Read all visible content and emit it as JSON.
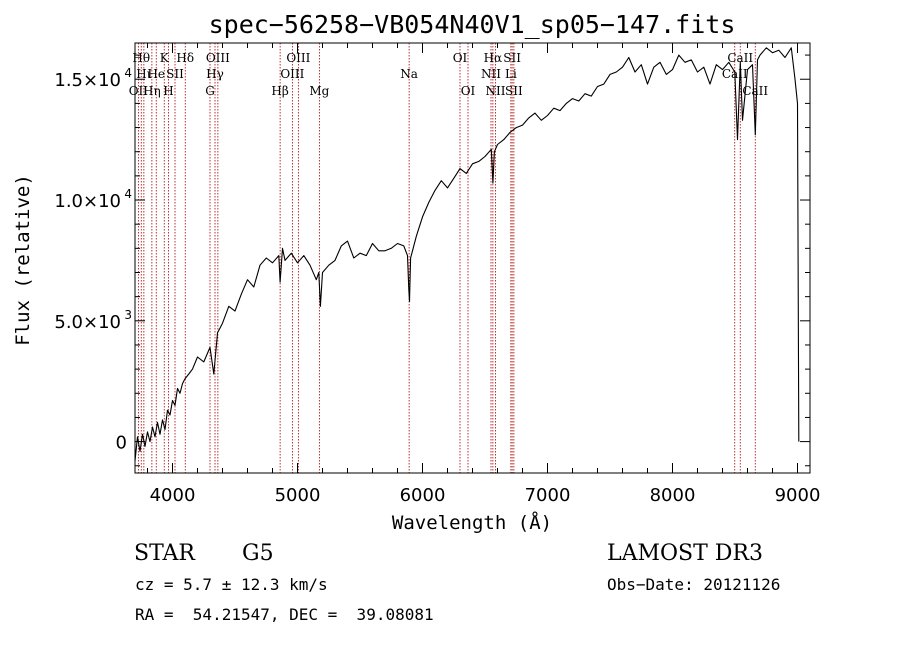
{
  "chart_data": {
    "type": "line",
    "title": "spec−56258−VB054N40V1_sp05−147.fits",
    "xlabel": "Wavelength (Å)",
    "ylabel": "Flux (relative)",
    "xlim": [
      3700,
      9100
    ],
    "ylim": [
      -1300,
      16500
    ],
    "x_ticks": [
      {
        "value": 4000,
        "label": "4000"
      },
      {
        "value": 5000,
        "label": "5000"
      },
      {
        "value": 6000,
        "label": "6000"
      },
      {
        "value": 7000,
        "label": "7000"
      },
      {
        "value": 8000,
        "label": "8000"
      },
      {
        "value": 9000,
        "label": "9000"
      }
    ],
    "y_ticks": [
      {
        "value": 0,
        "label": "0"
      },
      {
        "value": 5000,
        "label": "5.0×10",
        "exp": "3"
      },
      {
        "value": 10000,
        "label": "1.0×10",
        "exp": "4"
      },
      {
        "value": 15000,
        "label": "1.5×10",
        "exp": "4"
      }
    ],
    "series": [
      {
        "name": "flux",
        "x": [
          3700,
          3720,
          3740,
          3760,
          3780,
          3800,
          3820,
          3840,
          3860,
          3880,
          3900,
          3920,
          3940,
          3960,
          3980,
          4000,
          4020,
          4040,
          4060,
          4080,
          4100,
          4130,
          4160,
          4200,
          4250,
          4300,
          4330,
          4360,
          4400,
          4450,
          4500,
          4550,
          4600,
          4650,
          4700,
          4750,
          4800,
          4850,
          4861,
          4880,
          4900,
          4950,
          5000,
          5050,
          5100,
          5150,
          5170,
          5183,
          5200,
          5250,
          5300,
          5350,
          5400,
          5450,
          5500,
          5550,
          5600,
          5650,
          5700,
          5750,
          5800,
          5850,
          5880,
          5890,
          5896,
          5905,
          5920,
          5950,
          6000,
          6050,
          6100,
          6150,
          6200,
          6250,
          6300,
          6350,
          6400,
          6450,
          6500,
          6550,
          6563,
          6575,
          6600,
          6650,
          6700,
          6750,
          6800,
          6850,
          6900,
          6950,
          7000,
          7050,
          7100,
          7150,
          7200,
          7250,
          7300,
          7350,
          7400,
          7450,
          7500,
          7550,
          7600,
          7650,
          7700,
          7750,
          7800,
          7850,
          7900,
          7950,
          8000,
          8050,
          8100,
          8150,
          8200,
          8250,
          8300,
          8350,
          8400,
          8450,
          8498,
          8520,
          8542,
          8560,
          8600,
          8640,
          8662,
          8680,
          8700,
          8750,
          8800,
          8850,
          8900,
          8950,
          8980,
          9000,
          9010
        ],
        "y": [
          -800,
          200,
          -400,
          300,
          -200,
          400,
          0,
          600,
          200,
          800,
          300,
          900,
          500,
          1300,
          1100,
          1700,
          1500,
          2200,
          2000,
          2400,
          2600,
          2800,
          3000,
          3500,
          3300,
          3900,
          2800,
          4500,
          4900,
          5600,
          5400,
          6100,
          6700,
          6400,
          7300,
          7600,
          7400,
          7700,
          6600,
          8000,
          7500,
          7800,
          7400,
          7700,
          7300,
          6700,
          7000,
          5600,
          7000,
          7300,
          7500,
          8100,
          8300,
          7600,
          7800,
          7700,
          8200,
          7900,
          7900,
          8000,
          8200,
          8100,
          7700,
          6300,
          5800,
          7600,
          7900,
          8500,
          9300,
          9900,
          10400,
          10800,
          10500,
          10900,
          11300,
          11100,
          11500,
          11600,
          11800,
          12100,
          10700,
          12000,
          12300,
          12500,
          12800,
          13000,
          13100,
          13400,
          13600,
          13300,
          13500,
          13800,
          13700,
          14000,
          14200,
          14100,
          14400,
          14300,
          14700,
          14800,
          15200,
          15300,
          15500,
          15900,
          15300,
          15600,
          14800,
          15500,
          15700,
          15200,
          15400,
          16000,
          15700,
          15800,
          15300,
          15500,
          14800,
          15600,
          15400,
          15700,
          15300,
          12500,
          15700,
          13300,
          15400,
          15600,
          12700,
          15800,
          16000,
          16300,
          16100,
          16200,
          15900,
          16300,
          15000,
          14000,
          0
        ]
      }
    ],
    "spectral_lines": [
      {
        "wave": 3727,
        "label": "OII",
        "row": 3
      },
      {
        "wave": 3750,
        "label": "Hθ",
        "row": 1
      },
      {
        "wave": 3771,
        "label": "Hι",
        "row": 2
      },
      {
        "wave": 3835,
        "label": "Hη",
        "row": 3
      },
      {
        "wave": 3870,
        "label": "He",
        "row": 2
      },
      {
        "wave": 3934,
        "label": "K",
        "row": 1
      },
      {
        "wave": 3968,
        "label": "H",
        "row": 3
      },
      {
        "wave": 4020,
        "label": "SII",
        "row": 2
      },
      {
        "wave": 4102,
        "label": "Hδ",
        "row": 1
      },
      {
        "wave": 4300,
        "label": "G",
        "row": 3
      },
      {
        "wave": 4340,
        "label": "Hγ",
        "row": 2
      },
      {
        "wave": 4363,
        "label": "OIII",
        "row": 1
      },
      {
        "wave": 4861,
        "label": "Hβ",
        "row": 3
      },
      {
        "wave": 4959,
        "label": "OIII",
        "row": 2
      },
      {
        "wave": 5007,
        "label": "OIII",
        "row": 1
      },
      {
        "wave": 5175,
        "label": "Mg",
        "row": 3
      },
      {
        "wave": 5893,
        "label": "Na",
        "row": 2
      },
      {
        "wave": 6300,
        "label": "OI",
        "row": 1
      },
      {
        "wave": 6364,
        "label": "OI",
        "row": 3
      },
      {
        "wave": 6548,
        "label": "NII",
        "row": 2
      },
      {
        "wave": 6563,
        "label": "Hα",
        "row": 1
      },
      {
        "wave": 6584,
        "label": "NII",
        "row": 3
      },
      {
        "wave": 6707,
        "label": "Li",
        "row": 2
      },
      {
        "wave": 6717,
        "label": "SII",
        "row": 1
      },
      {
        "wave": 6731,
        "label": "SII",
        "row": 3
      },
      {
        "wave": 8498,
        "label": "CaII",
        "row": 2
      },
      {
        "wave": 8542,
        "label": "CaII",
        "row": 1
      },
      {
        "wave": 8662,
        "label": "CaII",
        "row": 3
      }
    ],
    "line_color": "#000000",
    "marker_color": "#aa0000"
  },
  "info": {
    "object_class": "STAR",
    "subclass": "G5",
    "survey": "LAMOST DR3",
    "redshift": "cz = 5.7 ± 12.3 km/s",
    "obs_date": "Obs−Date: 20121126",
    "coords": "RA =  54.21547, DEC =  39.08081"
  }
}
